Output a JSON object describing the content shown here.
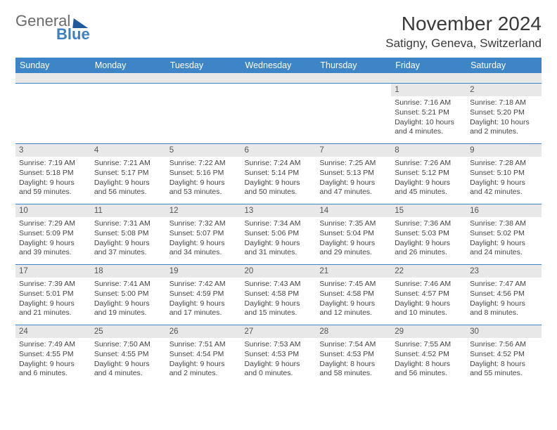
{
  "brand": {
    "word1": "General",
    "word2": "Blue"
  },
  "title": "November 2024",
  "location": "Satigny, Geneva, Switzerland",
  "weekdays": [
    "Sunday",
    "Monday",
    "Tuesday",
    "Wednesday",
    "Thursday",
    "Friday",
    "Saturday"
  ],
  "colors": {
    "header_bg": "#3d85c6",
    "header_text": "#ffffff",
    "daynum_bg": "#e8e8e8",
    "rule": "#3d85c6",
    "text": "#444444"
  },
  "weeks": [
    [
      {
        "empty": true
      },
      {
        "empty": true
      },
      {
        "empty": true
      },
      {
        "empty": true
      },
      {
        "empty": true
      },
      {
        "num": "1",
        "sunrise": "Sunrise: 7:16 AM",
        "sunset": "Sunset: 5:21 PM",
        "daylight1": "Daylight: 10 hours",
        "daylight2": "and 4 minutes."
      },
      {
        "num": "2",
        "sunrise": "Sunrise: 7:18 AM",
        "sunset": "Sunset: 5:20 PM",
        "daylight1": "Daylight: 10 hours",
        "daylight2": "and 2 minutes."
      }
    ],
    [
      {
        "num": "3",
        "sunrise": "Sunrise: 7:19 AM",
        "sunset": "Sunset: 5:18 PM",
        "daylight1": "Daylight: 9 hours",
        "daylight2": "and 59 minutes."
      },
      {
        "num": "4",
        "sunrise": "Sunrise: 7:21 AM",
        "sunset": "Sunset: 5:17 PM",
        "daylight1": "Daylight: 9 hours",
        "daylight2": "and 56 minutes."
      },
      {
        "num": "5",
        "sunrise": "Sunrise: 7:22 AM",
        "sunset": "Sunset: 5:16 PM",
        "daylight1": "Daylight: 9 hours",
        "daylight2": "and 53 minutes."
      },
      {
        "num": "6",
        "sunrise": "Sunrise: 7:24 AM",
        "sunset": "Sunset: 5:14 PM",
        "daylight1": "Daylight: 9 hours",
        "daylight2": "and 50 minutes."
      },
      {
        "num": "7",
        "sunrise": "Sunrise: 7:25 AM",
        "sunset": "Sunset: 5:13 PM",
        "daylight1": "Daylight: 9 hours",
        "daylight2": "and 47 minutes."
      },
      {
        "num": "8",
        "sunrise": "Sunrise: 7:26 AM",
        "sunset": "Sunset: 5:12 PM",
        "daylight1": "Daylight: 9 hours",
        "daylight2": "and 45 minutes."
      },
      {
        "num": "9",
        "sunrise": "Sunrise: 7:28 AM",
        "sunset": "Sunset: 5:10 PM",
        "daylight1": "Daylight: 9 hours",
        "daylight2": "and 42 minutes."
      }
    ],
    [
      {
        "num": "10",
        "sunrise": "Sunrise: 7:29 AM",
        "sunset": "Sunset: 5:09 PM",
        "daylight1": "Daylight: 9 hours",
        "daylight2": "and 39 minutes."
      },
      {
        "num": "11",
        "sunrise": "Sunrise: 7:31 AM",
        "sunset": "Sunset: 5:08 PM",
        "daylight1": "Daylight: 9 hours",
        "daylight2": "and 37 minutes."
      },
      {
        "num": "12",
        "sunrise": "Sunrise: 7:32 AM",
        "sunset": "Sunset: 5:07 PM",
        "daylight1": "Daylight: 9 hours",
        "daylight2": "and 34 minutes."
      },
      {
        "num": "13",
        "sunrise": "Sunrise: 7:34 AM",
        "sunset": "Sunset: 5:06 PM",
        "daylight1": "Daylight: 9 hours",
        "daylight2": "and 31 minutes."
      },
      {
        "num": "14",
        "sunrise": "Sunrise: 7:35 AM",
        "sunset": "Sunset: 5:04 PM",
        "daylight1": "Daylight: 9 hours",
        "daylight2": "and 29 minutes."
      },
      {
        "num": "15",
        "sunrise": "Sunrise: 7:36 AM",
        "sunset": "Sunset: 5:03 PM",
        "daylight1": "Daylight: 9 hours",
        "daylight2": "and 26 minutes."
      },
      {
        "num": "16",
        "sunrise": "Sunrise: 7:38 AM",
        "sunset": "Sunset: 5:02 PM",
        "daylight1": "Daylight: 9 hours",
        "daylight2": "and 24 minutes."
      }
    ],
    [
      {
        "num": "17",
        "sunrise": "Sunrise: 7:39 AM",
        "sunset": "Sunset: 5:01 PM",
        "daylight1": "Daylight: 9 hours",
        "daylight2": "and 21 minutes."
      },
      {
        "num": "18",
        "sunrise": "Sunrise: 7:41 AM",
        "sunset": "Sunset: 5:00 PM",
        "daylight1": "Daylight: 9 hours",
        "daylight2": "and 19 minutes."
      },
      {
        "num": "19",
        "sunrise": "Sunrise: 7:42 AM",
        "sunset": "Sunset: 4:59 PM",
        "daylight1": "Daylight: 9 hours",
        "daylight2": "and 17 minutes."
      },
      {
        "num": "20",
        "sunrise": "Sunrise: 7:43 AM",
        "sunset": "Sunset: 4:58 PM",
        "daylight1": "Daylight: 9 hours",
        "daylight2": "and 15 minutes."
      },
      {
        "num": "21",
        "sunrise": "Sunrise: 7:45 AM",
        "sunset": "Sunset: 4:58 PM",
        "daylight1": "Daylight: 9 hours",
        "daylight2": "and 12 minutes."
      },
      {
        "num": "22",
        "sunrise": "Sunrise: 7:46 AM",
        "sunset": "Sunset: 4:57 PM",
        "daylight1": "Daylight: 9 hours",
        "daylight2": "and 10 minutes."
      },
      {
        "num": "23",
        "sunrise": "Sunrise: 7:47 AM",
        "sunset": "Sunset: 4:56 PM",
        "daylight1": "Daylight: 9 hours",
        "daylight2": "and 8 minutes."
      }
    ],
    [
      {
        "num": "24",
        "sunrise": "Sunrise: 7:49 AM",
        "sunset": "Sunset: 4:55 PM",
        "daylight1": "Daylight: 9 hours",
        "daylight2": "and 6 minutes."
      },
      {
        "num": "25",
        "sunrise": "Sunrise: 7:50 AM",
        "sunset": "Sunset: 4:55 PM",
        "daylight1": "Daylight: 9 hours",
        "daylight2": "and 4 minutes."
      },
      {
        "num": "26",
        "sunrise": "Sunrise: 7:51 AM",
        "sunset": "Sunset: 4:54 PM",
        "daylight1": "Daylight: 9 hours",
        "daylight2": "and 2 minutes."
      },
      {
        "num": "27",
        "sunrise": "Sunrise: 7:53 AM",
        "sunset": "Sunset: 4:53 PM",
        "daylight1": "Daylight: 9 hours",
        "daylight2": "and 0 minutes."
      },
      {
        "num": "28",
        "sunrise": "Sunrise: 7:54 AM",
        "sunset": "Sunset: 4:53 PM",
        "daylight1": "Daylight: 8 hours",
        "daylight2": "and 58 minutes."
      },
      {
        "num": "29",
        "sunrise": "Sunrise: 7:55 AM",
        "sunset": "Sunset: 4:52 PM",
        "daylight1": "Daylight: 8 hours",
        "daylight2": "and 56 minutes."
      },
      {
        "num": "30",
        "sunrise": "Sunrise: 7:56 AM",
        "sunset": "Sunset: 4:52 PM",
        "daylight1": "Daylight: 8 hours",
        "daylight2": "and 55 minutes."
      }
    ]
  ]
}
